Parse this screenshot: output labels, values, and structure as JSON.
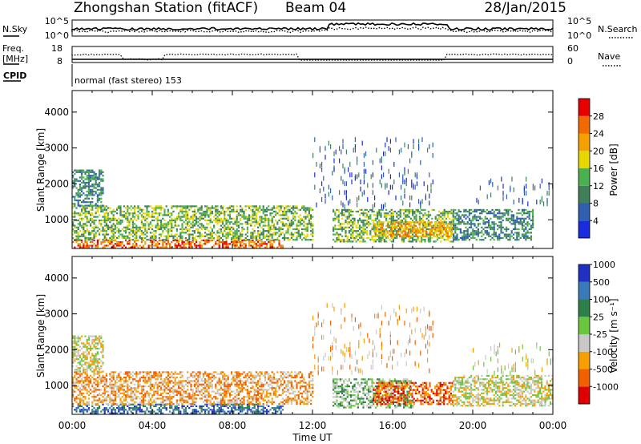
{
  "header": {
    "station": "Zhongshan Station (fitACF)",
    "beam": "Beam 04",
    "date": "28/Jan/2015"
  },
  "noise_panel": {
    "left_label": "N.Sky",
    "right_label": "N.Search",
    "left_ticks": [
      "10^5",
      "10^0"
    ],
    "right_ticks": [
      "10^5",
      "10^0"
    ],
    "right_legend_style": "dotted"
  },
  "freq_panel": {
    "left_label_line1": "Freq.",
    "left_label_line2": "[MHz]",
    "left_ticks": [
      "18",
      "8"
    ],
    "right_label": "Nave",
    "right_ticks": [
      "60",
      "0"
    ],
    "cpid_label": "CPID",
    "cpid_text": "normal (fast stereo) 153"
  },
  "colors": {
    "power": [
      "#1a2bdb",
      "#2f5fb0",
      "#3f7f5a",
      "#4caf50",
      "#e8d600",
      "#f5a000",
      "#ef6a00",
      "#e60000"
    ],
    "velocity": [
      "#e00000",
      "#f06000",
      "#f5a000",
      "#c8c8c8",
      "#6ac640",
      "#2f7f4a",
      "#3a7ab8",
      "#2030c0"
    ]
  },
  "chart_data": [
    {
      "type": "heatmap",
      "name": "power",
      "xlabel": "",
      "ylabel": "Slant Range [km]",
      "x_ticks": [],
      "y_ticks": [
        "1000",
        "2000",
        "3000",
        "4000"
      ],
      "ylim": [
        200,
        4600
      ],
      "xlim": [
        0,
        24
      ],
      "colorbar": {
        "label": "Power [dB]",
        "ticks": [
          "4",
          "8",
          "12",
          "16",
          "20",
          "24",
          "28"
        ],
        "range": [
          0,
          32
        ]
      },
      "bands": [
        {
          "x_start": 0,
          "x_end": 10.5,
          "y_low": 250,
          "y_high": 450,
          "level": 6
        },
        {
          "x_start": 0,
          "x_end": 12,
          "y_low": 450,
          "y_high": 1400,
          "level": 3
        },
        {
          "x_start": 0,
          "x_end": 1.5,
          "y_low": 1400,
          "y_high": 2400,
          "level": 2
        },
        {
          "x_start": 13,
          "x_end": 19,
          "y_low": 400,
          "y_high": 1300,
          "level": 3
        },
        {
          "x_start": 15,
          "x_end": 19,
          "y_low": 550,
          "y_high": 950,
          "level": 5
        },
        {
          "x_start": 19,
          "x_end": 23,
          "y_low": 450,
          "y_high": 1300,
          "level": 2
        },
        {
          "x_start": 20,
          "x_end": 24,
          "y_low": 1500,
          "y_high": 2200,
          "level": 1
        },
        {
          "x_start": 12,
          "x_end": 18,
          "y_low": 1400,
          "y_high": 3300,
          "level": 1
        }
      ]
    },
    {
      "type": "heatmap",
      "name": "velocity",
      "xlabel": "Time UT",
      "ylabel": "Slant Range [km]",
      "x_ticks": [
        "00:00",
        "04:00",
        "08:00",
        "12:00",
        "16:00",
        "20:00",
        "00:00"
      ],
      "y_ticks": [
        "1000",
        "2000",
        "3000",
        "4000"
      ],
      "ylim": [
        200,
        4600
      ],
      "xlim": [
        0,
        24
      ],
      "colorbar": {
        "label": "Velocity [m s⁻¹]",
        "ticks": [
          "-1000",
          "-500",
          "-100",
          "-25",
          "25",
          "100",
          "500",
          "1000"
        ],
        "range": [
          -1000,
          1000
        ]
      },
      "bands": [
        {
          "x_start": 0,
          "x_end": 10.5,
          "y_low": 250,
          "y_high": 500,
          "level": 6
        },
        {
          "x_start": 0,
          "x_end": 12,
          "y_low": 500,
          "y_high": 1400,
          "level": 2
        },
        {
          "x_start": 0,
          "x_end": 1.5,
          "y_low": 1400,
          "y_high": 2400,
          "level": 3
        },
        {
          "x_start": 13,
          "x_end": 17,
          "y_low": 400,
          "y_high": 1200,
          "level": 4
        },
        {
          "x_start": 15,
          "x_end": 19,
          "y_low": 500,
          "y_high": 1100,
          "level": 1
        },
        {
          "x_start": 19,
          "x_end": 24,
          "y_low": 450,
          "y_high": 1300,
          "level": 3
        },
        {
          "x_start": 20,
          "x_end": 24,
          "y_low": 1400,
          "y_high": 2200,
          "level": 3
        },
        {
          "x_start": 12,
          "x_end": 18,
          "y_low": 1400,
          "y_high": 3300,
          "level": 2
        }
      ]
    }
  ]
}
